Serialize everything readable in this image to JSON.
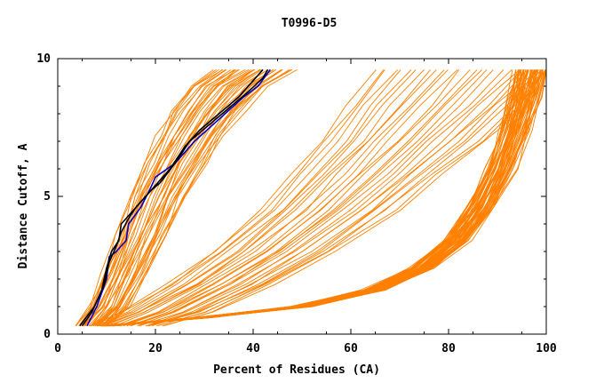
{
  "chart_data": {
    "type": "line",
    "title": "T0996-D5",
    "xlabel": "Percent of Residues (CA)",
    "ylabel": "Distance Cutoff, A",
    "xlim": [
      0,
      100
    ],
    "ylim": [
      0,
      10
    ],
    "x_ticks": [
      0,
      20,
      40,
      60,
      80,
      100
    ],
    "y_ticks": [
      0,
      5,
      10
    ],
    "grid": false,
    "legend": "none",
    "colors": {
      "models": "#ff8000",
      "highlight_a": "#0000cc",
      "highlight_b": "#000000",
      "axis": "#000000"
    },
    "series_groups": [
      {
        "group": "slow-rising models (orange)",
        "count": 38,
        "color": "#ff8000",
        "template": {
          "x": [
            5,
            8,
            11,
            14,
            17,
            20,
            23,
            26,
            30,
            35
          ],
          "y": [
            0.3,
            1.0,
            2.2,
            3.6,
            5.0,
            6.2,
            7.2,
            8.1,
            9.0,
            9.6
          ]
        },
        "x_spread": [
          -3,
          14
        ]
      },
      {
        "group": "intermediate models (orange)",
        "count": 30,
        "color": "#ff8000",
        "template": {
          "x": [
            8,
            15,
            25,
            35,
            45,
            52,
            58,
            64,
            70
          ],
          "y": [
            0.3,
            0.8,
            1.8,
            3.0,
            4.5,
            5.8,
            7.0,
            8.3,
            9.6
          ]
        },
        "x_spread": [
          -5,
          35
        ]
      },
      {
        "group": "fast-rising models (orange)",
        "count": 60,
        "color": "#ff8000",
        "template": {
          "x": [
            10,
            30,
            50,
            65,
            75,
            82,
            87,
            91,
            94,
            96,
            97.5
          ],
          "y": [
            0.3,
            0.6,
            1.0,
            1.6,
            2.4,
            3.4,
            4.6,
            6.0,
            7.4,
            8.6,
            9.6
          ]
        },
        "x_spread": [
          -4,
          3
        ]
      }
    ],
    "series": [
      {
        "color": "#0000cc",
        "x": [
          6,
          8,
          10,
          10.5,
          12,
          14,
          14.5,
          17,
          19,
          20,
          24,
          28,
          33,
          38,
          41,
          43.5
        ],
        "y": [
          0.3,
          1.0,
          2.0,
          2.8,
          3.0,
          3.4,
          4.0,
          4.6,
          5.3,
          5.7,
          6.2,
          7.0,
          7.8,
          8.6,
          9.0,
          9.6
        ]
      },
      {
        "color": "#000000",
        "x": [
          5,
          7,
          9,
          10,
          11,
          12.5,
          13,
          15,
          17,
          19,
          21,
          24,
          27,
          31,
          35,
          39,
          42,
          43
        ],
        "y": [
          0.3,
          0.8,
          1.6,
          2.4,
          3.0,
          3.4,
          4.0,
          4.4,
          4.8,
          5.2,
          5.5,
          6.2,
          7.0,
          7.6,
          8.2,
          8.8,
          9.3,
          9.6
        ]
      },
      {
        "color": "#000000",
        "x": [
          4.5,
          7.5,
          9.5,
          10.5,
          12,
          13,
          14.5,
          16,
          18,
          20,
          23,
          26,
          29,
          33,
          37,
          40,
          42
        ],
        "y": [
          0.3,
          1.0,
          1.8,
          2.6,
          3.2,
          3.7,
          4.2,
          4.6,
          5.0,
          5.4,
          6.0,
          6.8,
          7.4,
          8.0,
          8.6,
          9.2,
          9.6
        ]
      }
    ]
  }
}
